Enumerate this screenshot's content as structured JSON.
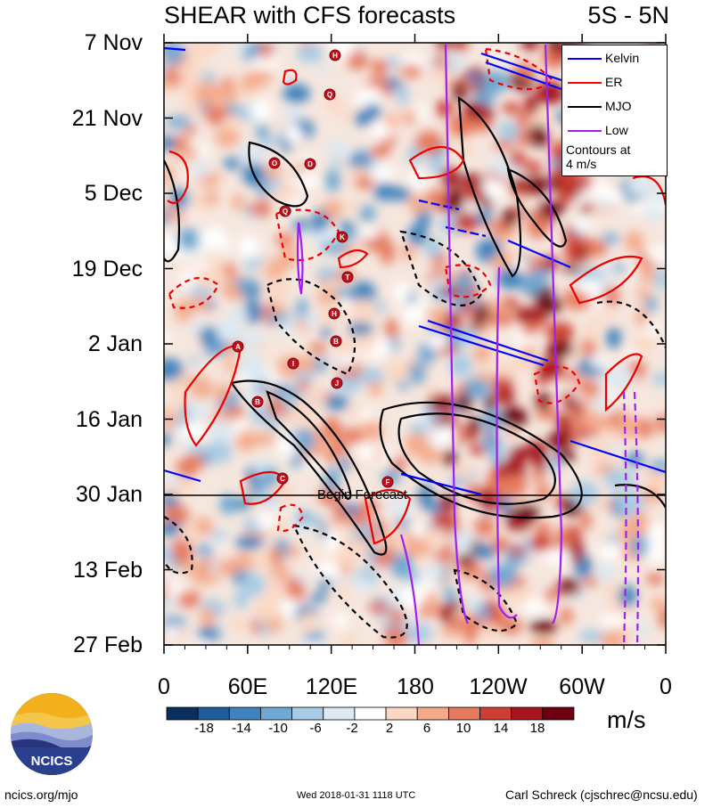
{
  "title": {
    "left": "SHEAR with CFS forecasts",
    "right": "5S - 5N"
  },
  "chart_data": {
    "type": "heatmap",
    "title": "SHEAR with CFS forecasts",
    "region": "5S - 5N",
    "y_ticks": [
      "7 Nov",
      "21 Nov",
      "5 Dec",
      "19 Dec",
      "2 Jan",
      "16 Jan",
      "30 Jan",
      "13 Feb",
      "27 Feb"
    ],
    "x_ticks": [
      "0",
      "60E",
      "120E",
      "180",
      "120W",
      "60W",
      "0"
    ],
    "colorbar": {
      "labels": [
        "-18",
        "-14",
        "-10",
        "-6",
        "-2",
        "2",
        "6",
        "10",
        "14",
        "18"
      ],
      "colors": [
        "#0a2f5e",
        "#1f5d99",
        "#3e83bd",
        "#6fa8d2",
        "#a8cbe5",
        "#dce9f3",
        "#ffffff",
        "#fbd8c4",
        "#f4ab8c",
        "#e67a5e",
        "#cd3f33",
        "#a5161d",
        "#6d0011"
      ],
      "units": "m/s"
    },
    "annotation": "Begin Forecast",
    "legend": {
      "entries": [
        {
          "name": "Kelvin",
          "color": "#0000ff"
        },
        {
          "name": "ER",
          "color": "#ff0000"
        },
        {
          "name": "MJO",
          "color": "#000000"
        },
        {
          "name": "Low",
          "color": "#a020f0"
        }
      ],
      "note_line1": "Contours at",
      "note_line2": "4 m/s"
    },
    "storm_markers": [
      "H",
      "Q",
      "O",
      "D",
      "Q",
      "K",
      "T",
      "H",
      "B",
      "A",
      "I",
      "J",
      "B",
      "C",
      "F"
    ]
  },
  "footer": {
    "left": "ncics.org/mjo",
    "center": "Wed 2018-01-31 1118 UTC",
    "right": "Carl Schreck (cjschrec@ncsu.edu)"
  },
  "logo": {
    "text": "NCICS"
  }
}
